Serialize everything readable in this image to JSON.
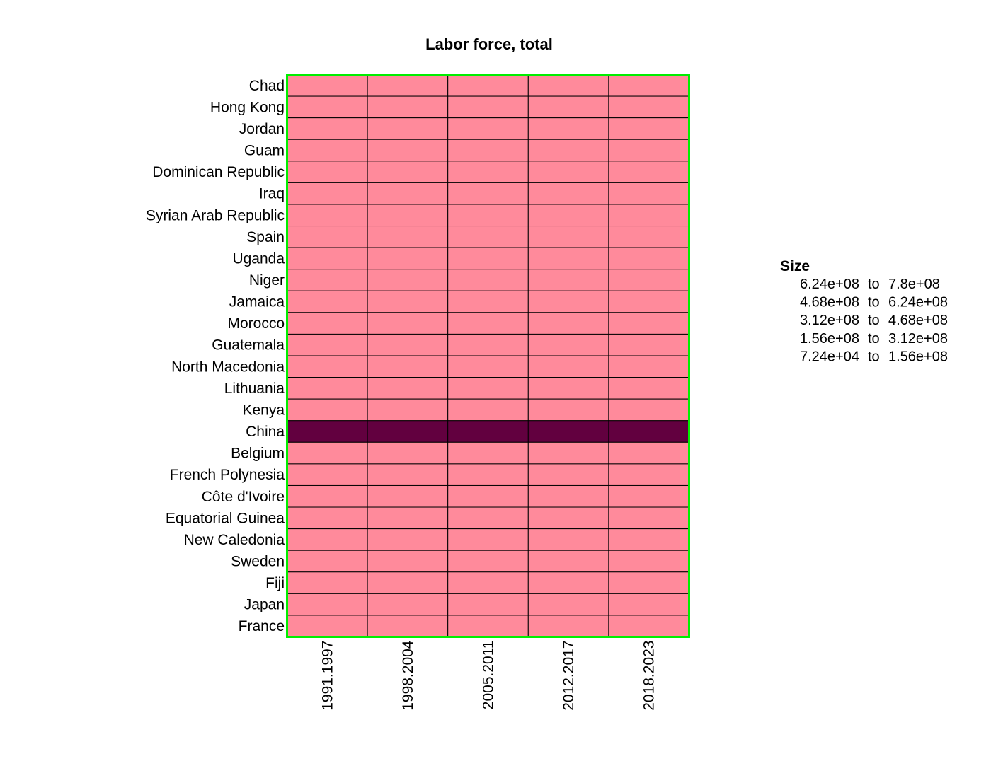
{
  "chart_data": {
    "type": "heatmap",
    "title": "Labor force, total",
    "columns": [
      "1991.1997",
      "1998.2004",
      "2005.2011",
      "2012.2017",
      "2018.2023"
    ],
    "rows": [
      "Chad",
      "Hong Kong",
      "Jordan",
      "Guam",
      "Dominican Republic",
      "Iraq",
      "Syrian Arab Republic",
      "Spain",
      "Uganda",
      "Niger",
      "Jamaica",
      "Morocco",
      "Guatemala",
      "North Macedonia",
      "Lithuania",
      "Kenya",
      "China",
      "Belgium",
      "French Polynesia",
      "Côte d'Ivoire",
      "Equatorial Guinea",
      "New Caledonia",
      "Sweden",
      "Fiji",
      "Japan",
      "France"
    ],
    "bins": [
      [
        0,
        0,
        0,
        0,
        0
      ],
      [
        0,
        0,
        0,
        0,
        0
      ],
      [
        0,
        0,
        0,
        0,
        0
      ],
      [
        0,
        0,
        0,
        0,
        0
      ],
      [
        0,
        0,
        0,
        0,
        0
      ],
      [
        0,
        0,
        0,
        0,
        0
      ],
      [
        0,
        0,
        0,
        0,
        0
      ],
      [
        0,
        0,
        0,
        0,
        0
      ],
      [
        0,
        0,
        0,
        0,
        0
      ],
      [
        0,
        0,
        0,
        0,
        0
      ],
      [
        0,
        0,
        0,
        0,
        0
      ],
      [
        0,
        0,
        0,
        0,
        0
      ],
      [
        0,
        0,
        0,
        0,
        0
      ],
      [
        0,
        0,
        0,
        0,
        0
      ],
      [
        0,
        0,
        0,
        0,
        0
      ],
      [
        0,
        0,
        0,
        0,
        0
      ],
      [
        4,
        4,
        4,
        4,
        4
      ],
      [
        0,
        0,
        0,
        0,
        0
      ],
      [
        0,
        0,
        0,
        0,
        0
      ],
      [
        0,
        0,
        0,
        0,
        0
      ],
      [
        0,
        0,
        0,
        0,
        0
      ],
      [
        0,
        0,
        0,
        0,
        0
      ],
      [
        0,
        0,
        0,
        0,
        0
      ],
      [
        0,
        0,
        0,
        0,
        0
      ],
      [
        0,
        0,
        0,
        0,
        0
      ],
      [
        0,
        0,
        0,
        0,
        0
      ]
    ],
    "legend": {
      "title": "Size",
      "placement": "right",
      "entries": [
        {
          "from": "6.24e+08",
          "sep": "to",
          "to": "7.8e+08"
        },
        {
          "from": "4.68e+08",
          "sep": "to",
          "to": "6.24e+08"
        },
        {
          "from": "3.12e+08",
          "sep": "to",
          "to": "4.68e+08"
        },
        {
          "from": "1.56e+08",
          "sep": "to",
          "to": "3.12e+08"
        },
        {
          "from": "7.24e+04",
          "sep": "to",
          "to": "1.56e+08"
        }
      ]
    },
    "bin_colors": [
      "#ff8a9b",
      "#f0657c",
      "#c93d62",
      "#93134f",
      "#62003f"
    ],
    "cell_border_color": "#000000",
    "frame_color": "#00ee00"
  }
}
